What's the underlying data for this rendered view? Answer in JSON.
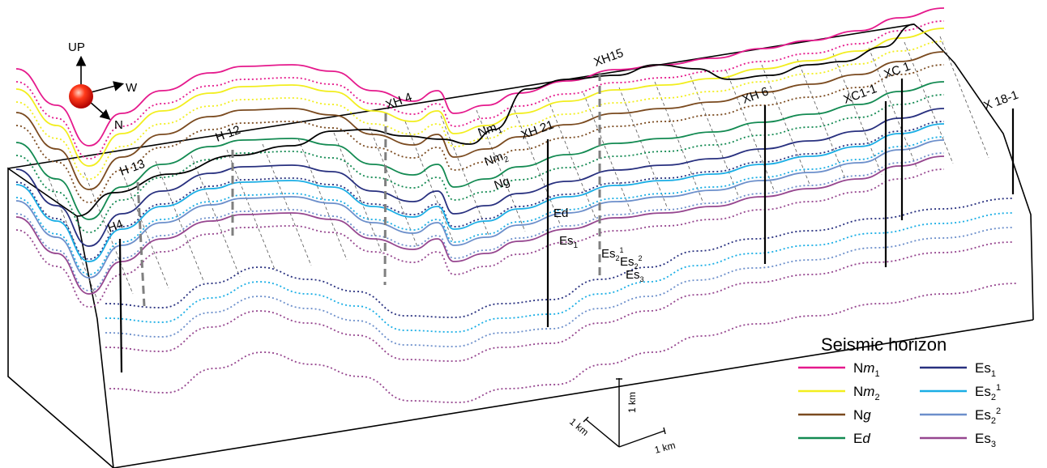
{
  "compass": {
    "up": "UP",
    "west": "W",
    "north": "N"
  },
  "wells": [
    {
      "id": "h4",
      "label": "H4",
      "type": "solid"
    },
    {
      "id": "h13",
      "label": "H 13",
      "type": "dashed"
    },
    {
      "id": "h12",
      "label": "H 12",
      "type": "dashed"
    },
    {
      "id": "xh4",
      "label": "XH 4",
      "type": "dashed"
    },
    {
      "id": "xh21",
      "label": "XH 21",
      "type": "solid"
    },
    {
      "id": "xh15",
      "label": "XH15",
      "type": "dashed"
    },
    {
      "id": "xh6",
      "label": "XH 6",
      "type": "solid"
    },
    {
      "id": "xc1",
      "label": "XC 1",
      "type": "solid"
    },
    {
      "id": "xc11",
      "label": "XC1-1",
      "type": "solid"
    },
    {
      "id": "x181",
      "label": "X 18-1",
      "type": "solid"
    }
  ],
  "horizon_labels": {
    "nm1": {
      "base": "Nm",
      "sub": "1"
    },
    "nm2": {
      "base": "Nm",
      "sub": "2"
    },
    "ng": {
      "base": "Ng",
      "sub": ""
    },
    "ed": {
      "base": "Ed",
      "sub": ""
    },
    "es1": {
      "base": "Es",
      "sub": "1"
    },
    "es21": {
      "base": "Es",
      "sub": "2",
      "sup": "1"
    },
    "es22": {
      "base": "Es",
      "sub": "2",
      "sup": "2"
    },
    "es3": {
      "base": "Es",
      "sub": "3"
    }
  },
  "legend": {
    "title": "Seismic horizon",
    "items": [
      {
        "base": "N",
        "ital": "m",
        "sub": "1",
        "sup": "",
        "color": "#E5198C"
      },
      {
        "base": "N",
        "ital": "m",
        "sub": "2",
        "sup": "",
        "color": "#F2EE1E"
      },
      {
        "base": "N",
        "ital": "g",
        "sub": "",
        "sup": "",
        "color": "#7A4A1F"
      },
      {
        "base": "E",
        "ital": "d",
        "sub": "",
        "sup": "",
        "color": "#138A52"
      },
      {
        "base": "Es",
        "ital": "",
        "sub": "1",
        "sup": "",
        "color": "#28307F"
      },
      {
        "base": "Es",
        "ital": "",
        "sub": "2",
        "sup": "1",
        "color": "#1AAEE5"
      },
      {
        "base": "Es",
        "ital": "",
        "sub": "2",
        "sup": "2",
        "color": "#6C8FCB"
      },
      {
        "base": "Es",
        "ital": "",
        "sub": "3",
        "sup": "",
        "color": "#96468F"
      }
    ]
  },
  "scale": {
    "vertical": "1 km",
    "horizontal": "1 km",
    "depth": "1 km"
  },
  "colors": {
    "outline": "#000000",
    "surface": "#000000",
    "dashed_grid": "#444444"
  }
}
